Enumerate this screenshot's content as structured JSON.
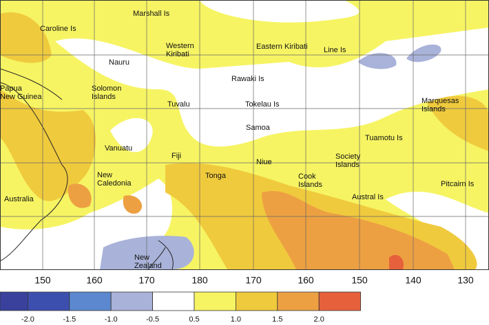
{
  "places": [
    {
      "lines": [
        "Marshall Is"
      ]
    },
    {
      "lines": [
        "Caroline Is"
      ]
    },
    {
      "lines": [
        "Western",
        "Kiribati"
      ]
    },
    {
      "lines": [
        "Eastern Kiribati"
      ]
    },
    {
      "lines": [
        "Line Is"
      ]
    },
    {
      "lines": [
        "Nauru"
      ]
    },
    {
      "lines": [
        "Rawaki Is"
      ]
    },
    {
      "lines": [
        "Papua",
        "New Guinea"
      ]
    },
    {
      "lines": [
        "Solomon",
        "Islands"
      ]
    },
    {
      "lines": [
        "Tuvalu"
      ]
    },
    {
      "lines": [
        "Tokelau Is"
      ]
    },
    {
      "lines": [
        "Marquesas",
        "Islands"
      ]
    },
    {
      "lines": [
        "Samoa"
      ]
    },
    {
      "lines": [
        "Tuamotu Is"
      ]
    },
    {
      "lines": [
        "Vanuatu"
      ]
    },
    {
      "lines": [
        "Fiji"
      ]
    },
    {
      "lines": [
        "Niue"
      ]
    },
    {
      "lines": [
        "Society",
        "Islands"
      ]
    },
    {
      "lines": [
        "Tonga"
      ]
    },
    {
      "lines": [
        "Cook",
        "Islands"
      ]
    },
    {
      "lines": [
        "New",
        "Caledonia"
      ]
    },
    {
      "lines": [
        "Pitcairn Is"
      ]
    },
    {
      "lines": [
        "Australia"
      ]
    },
    {
      "lines": [
        "Austral Is"
      ]
    },
    {
      "lines": [
        "New",
        "Zealand"
      ]
    }
  ],
  "longitudes": [
    "150",
    "160",
    "170",
    "180",
    "170",
    "160",
    "150",
    "140",
    "130"
  ],
  "legend": {
    "colors": [
      "#3a419c",
      "#3d4fae",
      "#5b88cf",
      "#a9b2d9",
      "#ffffff",
      "#f6f463",
      "#f0ca3d",
      "#eda042",
      "#e6613b"
    ],
    "ticks": [
      "-2.0",
      "-1.5",
      "-1.0",
      "-0.5",
      "0.5",
      "1.0",
      "1.5",
      "2.0"
    ]
  }
}
